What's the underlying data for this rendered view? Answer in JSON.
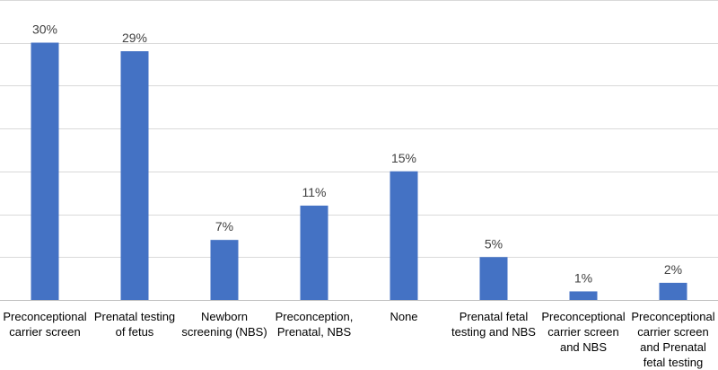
{
  "chart_data": {
    "type": "bar",
    "title": "",
    "xlabel": "",
    "ylabel": "",
    "categories": [
      "Preconceptional\ncarrier  screen",
      "Prenatal testing\nof fetus",
      "Newborn\nscreening (NBS)",
      "Preconception,\nPrenatal, NBS",
      "None",
      "Prenatal fetal\ntesting and NBS",
      "Preconceptional\ncarrier screen\nand NBS",
      "Preconceptional\ncarrier screen\nand Prenatal\nfetal testing"
    ],
    "values": [
      30,
      29,
      7,
      11,
      15,
      5,
      1,
      2
    ],
    "data_labels": [
      "30%",
      "29%",
      "7%",
      "11%",
      "15%",
      "5%",
      "1%",
      "2%"
    ],
    "ylim": [
      0,
      35
    ],
    "gridlines": [
      0,
      5,
      10,
      15,
      20,
      25,
      30,
      35
    ],
    "grid": true,
    "legend": "none",
    "bar_color": "#4472c4",
    "grid_color": "#d9d9d9"
  }
}
